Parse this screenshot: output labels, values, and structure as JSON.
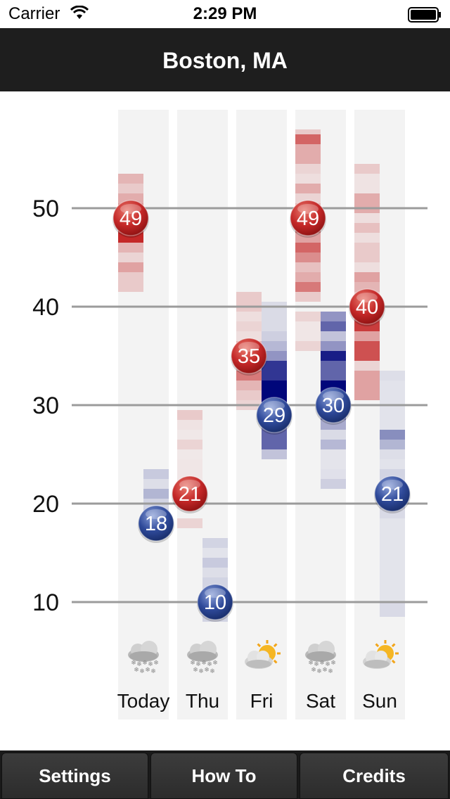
{
  "status_bar": {
    "carrier": "Carrier",
    "time": "2:29 PM"
  },
  "nav": {
    "title": "Boston, MA"
  },
  "tabs": [
    {
      "label": "Settings"
    },
    {
      "label": "How To"
    },
    {
      "label": "Credits"
    }
  ],
  "colors": {
    "high": "#c42828",
    "low": "#2f4a9a",
    "nav_bg": "#1e1e1e",
    "column_bg": "#f3f3f3"
  },
  "chart_data": {
    "type": "range-heat",
    "y_ticks": [
      "10",
      "20",
      "30",
      "40",
      "50"
    ],
    "ylim": [
      5,
      60
    ],
    "grid": true,
    "days": [
      {
        "label": "Today",
        "icon": "snow-cloud-icon",
        "high": 49,
        "low": 18,
        "high_bands": [
          [
            53.5,
            52.5,
            0.3
          ],
          [
            52.5,
            51.5,
            0.2
          ],
          [
            51.5,
            50.5,
            0.35
          ],
          [
            50.5,
            49.5,
            0.45
          ],
          [
            49.5,
            48.5,
            0.7
          ],
          [
            48.5,
            47.5,
            0.85
          ],
          [
            47.5,
            46.5,
            1.0
          ],
          [
            46.5,
            45.5,
            0.3
          ],
          [
            45.5,
            44.5,
            0.15
          ],
          [
            44.5,
            43.5,
            0.4
          ],
          [
            43.5,
            41.5,
            0.2
          ]
        ],
        "low_bands": [
          [
            23.5,
            22.5,
            0.2
          ],
          [
            22.5,
            21.5,
            0.1
          ],
          [
            21.5,
            20.5,
            0.3
          ],
          [
            20.5,
            19.5,
            0.15
          ],
          [
            19.5,
            18.5,
            0.2
          ]
        ]
      },
      {
        "label": "Thu",
        "icon": "snow-cloud-icon",
        "high": 21,
        "low": 10,
        "high_bands": [
          [
            29.5,
            28.5,
            0.2
          ],
          [
            28.5,
            27.5,
            0.08
          ],
          [
            27.5,
            26.5,
            0.05
          ],
          [
            26.5,
            25.5,
            0.15
          ],
          [
            25.5,
            24.5,
            0.05
          ],
          [
            24.5,
            21.5,
            0.06
          ],
          [
            21.5,
            19.5,
            0.08
          ],
          [
            18.5,
            17.5,
            0.15
          ]
        ],
        "low_bands": [
          [
            16.5,
            15.5,
            0.15
          ],
          [
            15.5,
            14.5,
            0.08
          ],
          [
            14.5,
            13.5,
            0.2
          ],
          [
            13.5,
            12.5,
            0.1
          ],
          [
            12.5,
            8,
            0.15
          ]
        ]
      },
      {
        "label": "Fri",
        "icon": "partly-sunny-icon",
        "high": 35,
        "low": 29,
        "high_bands": [
          [
            41.5,
            39.5,
            0.2
          ],
          [
            39.5,
            38.5,
            0.1
          ],
          [
            38.5,
            37.5,
            0.15
          ],
          [
            37.5,
            36.5,
            0.1
          ],
          [
            36.5,
            33.5,
            0.3
          ],
          [
            33.5,
            32.5,
            0.6
          ],
          [
            32.5,
            31.5,
            0.3
          ],
          [
            31.5,
            30.5,
            0.2
          ],
          [
            30.5,
            29.5,
            0.15
          ]
        ],
        "low_bands": [
          [
            40.5,
            39.5,
            0.1
          ],
          [
            39.5,
            37.5,
            0.1
          ],
          [
            37.5,
            36.5,
            0.15
          ],
          [
            36.5,
            35.5,
            0.25
          ],
          [
            35.5,
            34.5,
            0.4
          ],
          [
            34.5,
            32.5,
            0.8
          ],
          [
            32.5,
            29.5,
            1.0
          ],
          [
            29.5,
            27.5,
            0.5
          ],
          [
            27.5,
            25.5,
            0.6
          ],
          [
            25.5,
            24.5,
            0.2
          ]
        ]
      },
      {
        "label": "Sat",
        "icon": "snow-cloud-icon",
        "high": 49,
        "low": 30,
        "high_bands": [
          [
            58,
            57.5,
            0.2
          ],
          [
            57.5,
            56.5,
            0.7
          ],
          [
            56.5,
            54.5,
            0.35
          ],
          [
            54.5,
            53.5,
            0.15
          ],
          [
            53.5,
            52.5,
            0.1
          ],
          [
            52.5,
            51.5,
            0.35
          ],
          [
            51.5,
            50.5,
            0.15
          ],
          [
            50.5,
            49.5,
            0.3
          ],
          [
            49.5,
            47.5,
            0.65
          ],
          [
            47.5,
            46.5,
            0.4
          ],
          [
            46.5,
            45.5,
            0.7
          ],
          [
            45.5,
            44.5,
            0.5
          ],
          [
            44.5,
            43.5,
            0.25
          ],
          [
            43.5,
            42.5,
            0.35
          ],
          [
            42.5,
            41.5,
            0.6
          ],
          [
            41.5,
            40.5,
            0.2
          ],
          [
            39.5,
            38.5,
            0.15
          ],
          [
            38.5,
            36.5,
            0.06
          ],
          [
            36.5,
            35.5,
            0.15
          ]
        ],
        "low_bands": [
          [
            39.5,
            38.5,
            0.4
          ],
          [
            38.5,
            37.5,
            0.6
          ],
          [
            37.5,
            36.5,
            0.2
          ],
          [
            36.5,
            35.5,
            0.4
          ],
          [
            35.5,
            34.5,
            0.9
          ],
          [
            34.5,
            32.5,
            0.6
          ],
          [
            32.5,
            29.5,
            1.0
          ],
          [
            29.5,
            28.5,
            0.5
          ],
          [
            28.5,
            27.5,
            0.3
          ],
          [
            27.5,
            26.5,
            0.1
          ],
          [
            26.5,
            25.5,
            0.25
          ],
          [
            25.5,
            23.5,
            0.06
          ],
          [
            23.5,
            22.5,
            0.08
          ],
          [
            22.5,
            21.5,
            0.15
          ]
        ]
      },
      {
        "label": "Sun",
        "icon": "partly-sunny-icon",
        "high": 40,
        "low": 21,
        "high_bands": [
          [
            54.5,
            53.5,
            0.2
          ],
          [
            53.5,
            51.5,
            0.08
          ],
          [
            51.5,
            49.5,
            0.35
          ],
          [
            49.5,
            48.5,
            0.1
          ],
          [
            48.5,
            47.5,
            0.25
          ],
          [
            47.5,
            46.5,
            0.1
          ],
          [
            46.5,
            44.5,
            0.2
          ],
          [
            44.5,
            43.5,
            0.1
          ],
          [
            43.5,
            42.5,
            0.4
          ],
          [
            42.5,
            41.5,
            0.3
          ],
          [
            41.5,
            40.5,
            0.2
          ],
          [
            40.5,
            39.5,
            0.3
          ],
          [
            39.5,
            38.5,
            0.75
          ],
          [
            38.5,
            37.5,
            0.9
          ],
          [
            37.5,
            36.5,
            0.4
          ],
          [
            36.5,
            34.5,
            0.8
          ],
          [
            34.5,
            33.5,
            0.15
          ],
          [
            33.5,
            30.5,
            0.4
          ]
        ],
        "low_bands": [
          [
            33.5,
            32.5,
            0.1
          ],
          [
            32.5,
            27.5,
            0.08
          ],
          [
            27.5,
            26.5,
            0.5
          ],
          [
            26.5,
            25.5,
            0.3
          ],
          [
            25.5,
            24.5,
            0.1
          ],
          [
            24.5,
            23.5,
            0.08
          ],
          [
            23.5,
            21.5,
            0.15
          ],
          [
            21.5,
            19.5,
            0.2
          ],
          [
            19.5,
            18.5,
            0.12
          ],
          [
            18.5,
            10,
            0.07
          ],
          [
            10,
            8.5,
            0.12
          ]
        ]
      }
    ]
  }
}
